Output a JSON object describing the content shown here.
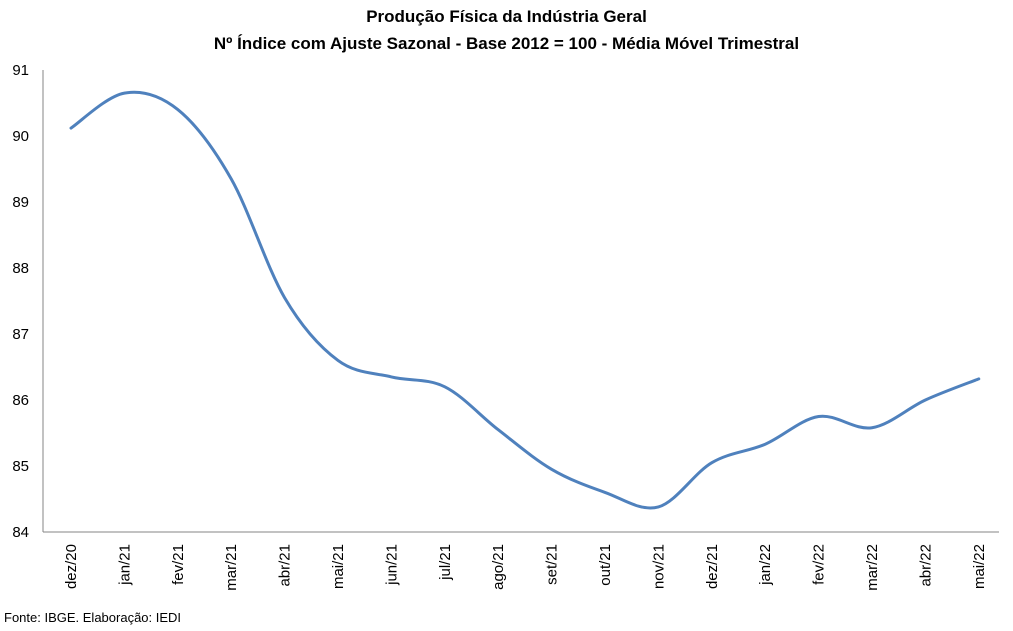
{
  "chart_data": {
    "type": "line",
    "title": "Produção Física da Indústria Geral",
    "subtitle": "Nº Índice com Ajuste Sazonal - Base 2012 = 100 - Média Móvel Trimestral",
    "xlabel": "",
    "ylabel": "",
    "ylim": [
      84,
      91
    ],
    "yticks": [
      "84",
      "85",
      "86",
      "87",
      "88",
      "89",
      "90",
      "91"
    ],
    "grid": false,
    "legend": "none",
    "categories": [
      "dez/20",
      "jan/21",
      "fev/21",
      "mar/21",
      "abr/21",
      "mai/21",
      "jun/21",
      "jul/21",
      "ago/21",
      "set/21",
      "out/21",
      "nov/21",
      "dez/21",
      "jan/22",
      "fev/22",
      "mar/22",
      "abr/22",
      "mai/22"
    ],
    "series": [
      {
        "color": "#4f81bd",
        "values": [
          90.12,
          90.65,
          90.4,
          89.35,
          87.55,
          86.6,
          86.35,
          86.2,
          85.55,
          84.95,
          84.6,
          84.38,
          85.05,
          85.33,
          85.75,
          85.58,
          86.0,
          86.32
        ]
      }
    ]
  },
  "footer": "Fonte: IBGE. Elaboração: IEDI"
}
